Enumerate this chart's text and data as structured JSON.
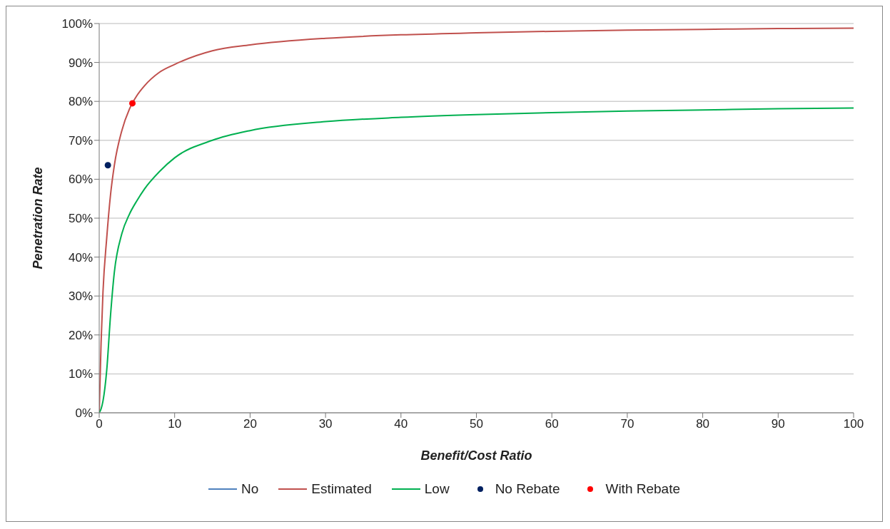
{
  "chart_data": {
    "type": "line",
    "xlabel": "Benefit/Cost Ratio",
    "ylabel": "Penetration Rate",
    "x": [
      0,
      0.25,
      0.5,
      1,
      1.5,
      2,
      3,
      4,
      5,
      6,
      8,
      10,
      15,
      20,
      30,
      40,
      50,
      60,
      70,
      80,
      90,
      100
    ],
    "series": [
      {
        "name": "No",
        "color": "#4f81bd",
        "values": [
          null,
          null,
          null,
          null,
          null,
          null,
          null,
          null,
          null,
          null,
          null,
          null,
          null,
          null,
          null,
          null,
          null,
          null,
          null,
          null,
          null,
          null
        ]
      },
      {
        "name": "Estimated",
        "color": "#c0504d",
        "values": [
          0,
          18,
          31,
          45,
          56,
          63.5,
          72.5,
          78,
          81.5,
          84,
          87.5,
          89.5,
          93,
          94.5,
          96.2,
          97.1,
          97.6,
          98,
          98.3,
          98.5,
          98.7,
          98.8
        ]
      },
      {
        "name": "Low",
        "color": "#00b050",
        "values": [
          0,
          1,
          3,
          11,
          25,
          36,
          46,
          51,
          54.5,
          57.5,
          62,
          65.5,
          70,
          72.5,
          74.8,
          75.9,
          76.6,
          77.1,
          77.5,
          77.8,
          78.1,
          78.3
        ]
      },
      {
        "name": "No Rebate",
        "type": "scatter",
        "marker": "circle",
        "color": "#002060",
        "x": [
          1.15
        ],
        "values": [
          63.6
        ]
      },
      {
        "name": "With Rebate",
        "type": "scatter",
        "marker": "circle",
        "color": "#ff0000",
        "x": [
          4.4
        ],
        "values": [
          79.5
        ]
      }
    ],
    "xlim": [
      0,
      100
    ],
    "xticks": [
      0,
      10,
      20,
      30,
      40,
      50,
      60,
      70,
      80,
      90,
      100
    ],
    "ylim": [
      0,
      100
    ],
    "yticks": [
      {
        "value": 0,
        "label": "0%"
      },
      {
        "value": 10,
        "label": "10%"
      },
      {
        "value": 20,
        "label": "20%"
      },
      {
        "value": 30,
        "label": "30%"
      },
      {
        "value": 40,
        "label": "40%"
      },
      {
        "value": 50,
        "label": "50%"
      },
      {
        "value": 60,
        "label": "60%"
      },
      {
        "value": 70,
        "label": "70%"
      },
      {
        "value": 80,
        "label": "80%"
      },
      {
        "value": 90,
        "label": "90%"
      },
      {
        "value": 100,
        "label": "100%"
      }
    ],
    "grid": "y",
    "legend": "bottom"
  }
}
